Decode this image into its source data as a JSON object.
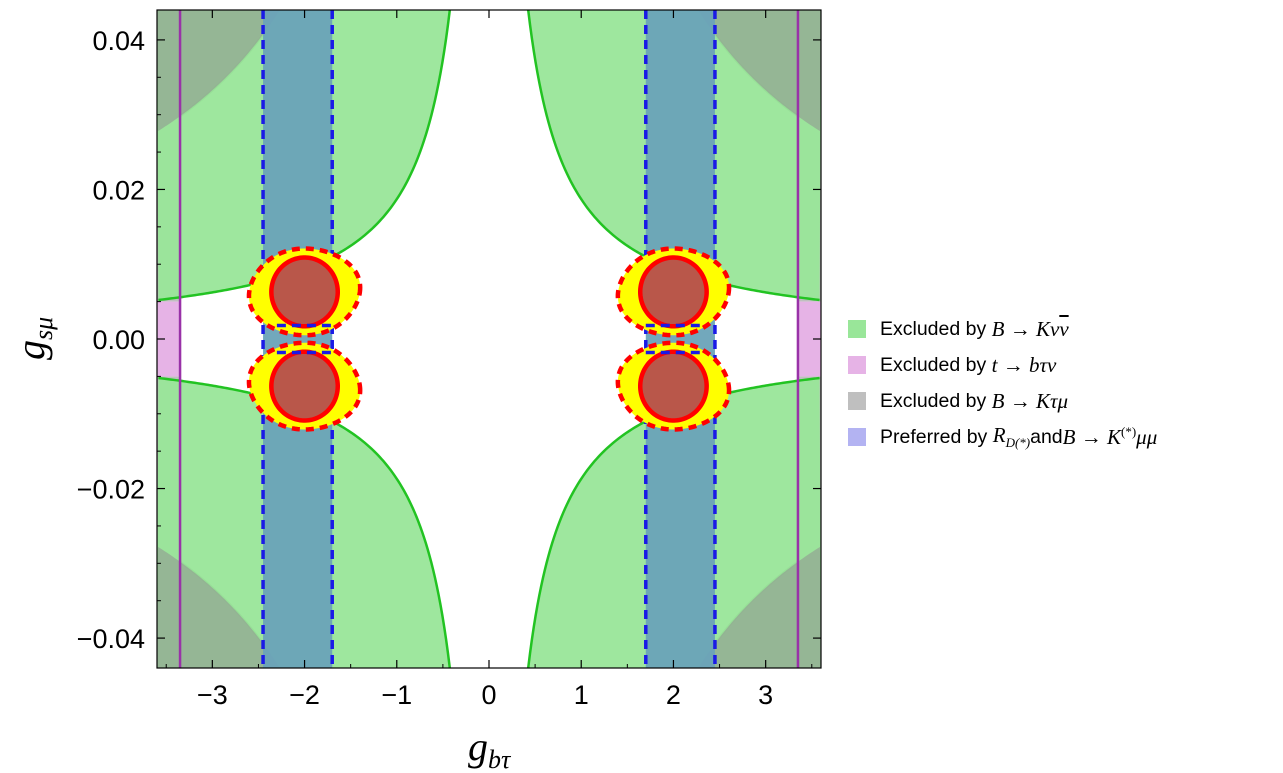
{
  "chart_data": {
    "type": "contour",
    "xlabel": "g_{bτ}",
    "ylabel": "g_{sμ}",
    "xlim": [
      -3.6,
      3.6
    ],
    "ylim": [
      -0.044,
      0.044
    ],
    "x_ticks": [
      -3,
      -2,
      -1,
      0,
      1,
      2,
      3
    ],
    "x_tick_labels": [
      "−3",
      "−2",
      "−1",
      "0",
      "1",
      "2",
      "3"
    ],
    "y_ticks": [
      0.04,
      0.02,
      0.0,
      -0.02,
      -0.04
    ],
    "y_tick_labels": [
      "0.04",
      "0.02",
      "0.00",
      "−0.02",
      "−0.04"
    ],
    "legend_position": "right",
    "colors": {
      "bknunu": "#99e699",
      "bknunu_edge": "#22c322",
      "tbtaunu": "#e6b3e6",
      "tbtaunu_edge": "#9932a8",
      "bktaumu": "#bfbfbf",
      "bktaumu_edge": "#707070",
      "preferred": "#6aa3b8",
      "preferred_edge": "#1a1ae6",
      "rd_outer": "#ffff00",
      "rd_inner": "#b9574a",
      "rd_edge": "#ff0000"
    },
    "regions": {
      "excluded_B_Knunu": {
        "product_bound": 0.0187,
        "y_min": 0.0052
      },
      "excluded_t_btaunu": {
        "abs_x_min": 3.35
      },
      "excluded_B_Ktaumu": {
        "product_bound": 0.0998
      },
      "preferred_RD_BKmumu": [
        [
          -2.45,
          -1.7
        ],
        [
          1.7,
          2.45
        ]
      ],
      "islands_center_x": 2.0
    },
    "legend": [
      {
        "label": "Excluded by B → Kνν̄",
        "prefix": "Excluded by ",
        "math": "B → Kν",
        "math_bar": "ν",
        "math_tail": "",
        "swatch": "#99e699"
      },
      {
        "label": "Excluded by t → bτν",
        "prefix": "Excluded by ",
        "math": "t → bτν",
        "swatch": "#e6b3e6"
      },
      {
        "label": "Excluded by B → Kτμ",
        "prefix": "Excluded by ",
        "math": "B → Kτμ",
        "swatch": "#bfbfbf"
      },
      {
        "label": "Preferred by R_{D(*)} and B → K(*)μμ",
        "prefix": "Preferred by ",
        "math": "R",
        "sub": "D(*)",
        "middle": " and ",
        "math2": "B → K",
        "sup": "(*)",
        "math3": "μμ",
        "swatch": "#b3b3f2"
      }
    ]
  }
}
